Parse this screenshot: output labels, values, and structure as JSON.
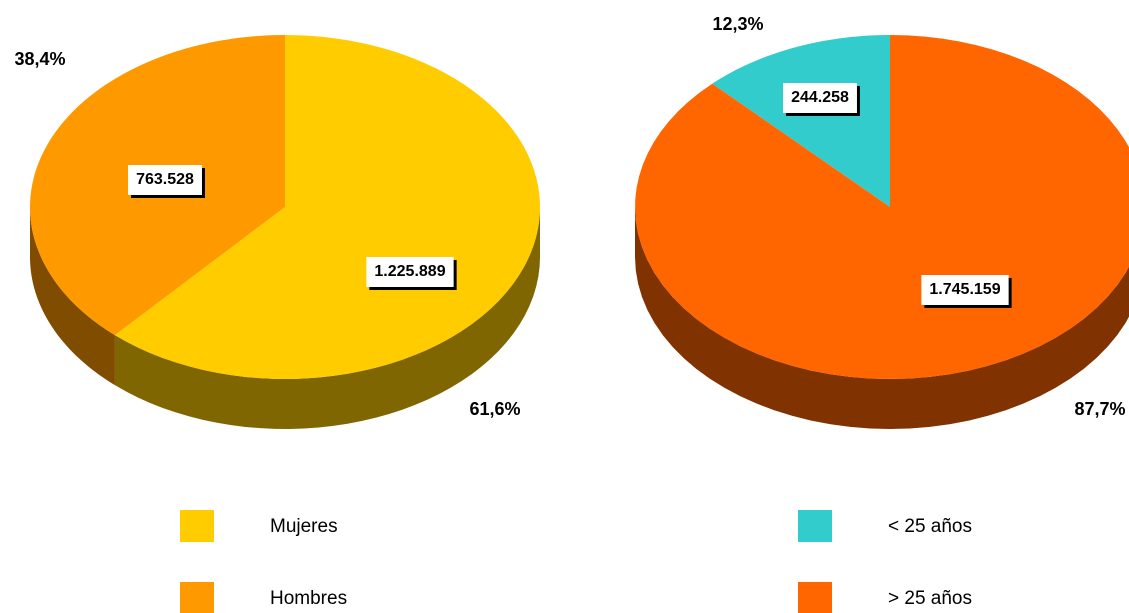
{
  "chart_data": [
    {
      "type": "pie",
      "direction": "clockwise",
      "categories": [
        "Mujeres",
        "Hombres"
      ],
      "values": [
        1225889,
        763528
      ],
      "value_labels": [
        "1.225.889",
        "763.528"
      ],
      "percents": [
        61.6,
        38.4
      ],
      "percent_labels": [
        "61,6%",
        "38,4%"
      ],
      "colors": [
        "#ffcc00",
        "#ff9900"
      ],
      "side_colors": [
        "#806600",
        "#804c00"
      ]
    },
    {
      "type": "pie",
      "direction": "counterclockwise",
      "categories": [
        "< 25 años",
        "> 25 años"
      ],
      "values": [
        244258,
        1745159
      ],
      "value_labels": [
        "244.258",
        "1.745.159"
      ],
      "percents": [
        12.3,
        87.7
      ],
      "percent_labels": [
        "12,3%",
        "87,7%"
      ],
      "colors": [
        "#33cccc",
        "#ff6600"
      ],
      "side_colors": [
        "#1a6666",
        "#803300"
      ]
    }
  ]
}
